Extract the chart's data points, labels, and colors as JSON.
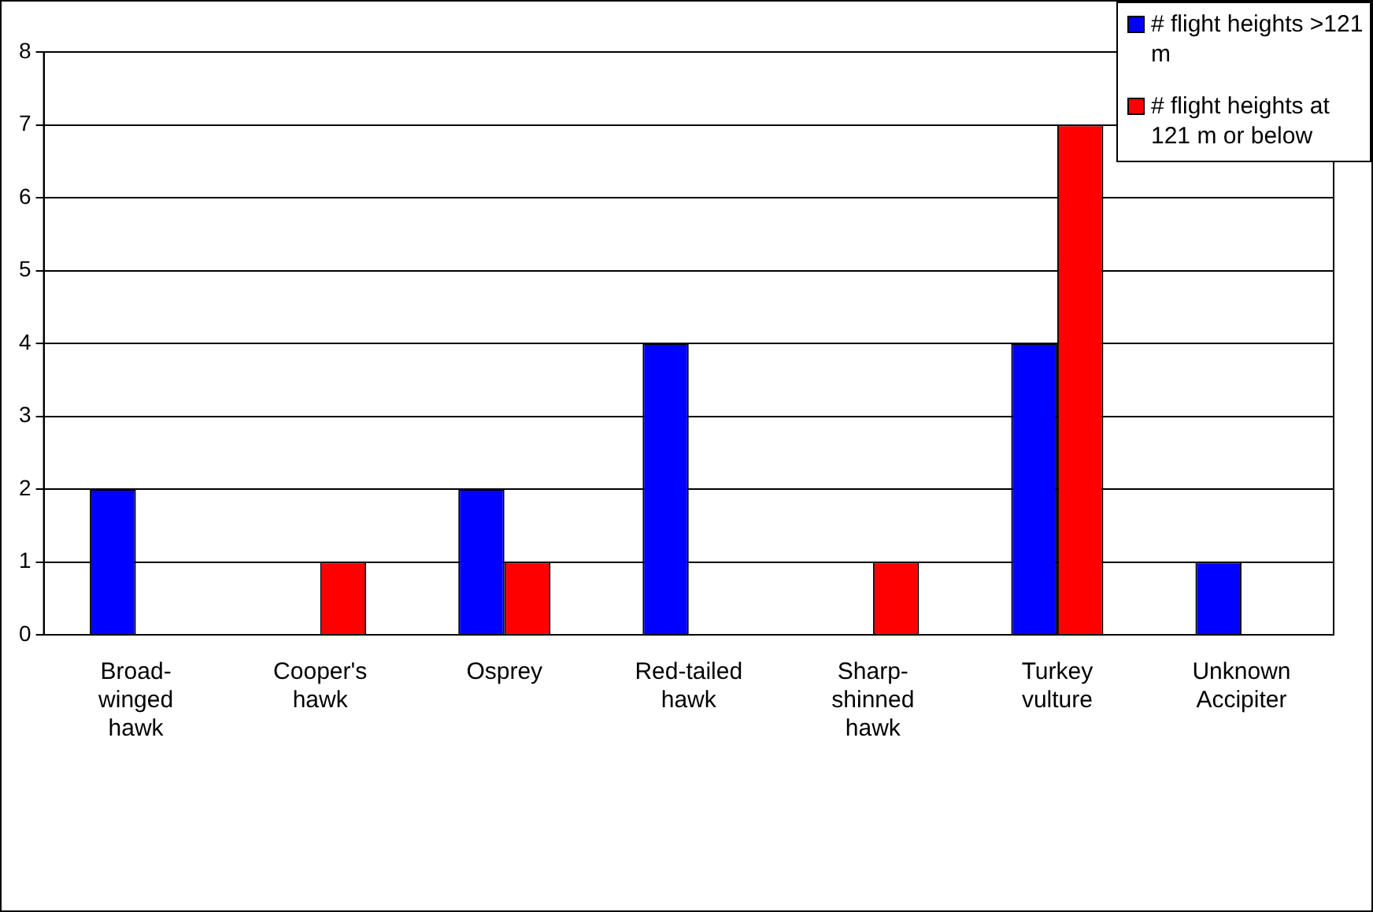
{
  "chart_data": {
    "type": "bar",
    "categories": [
      "Broad-winged hawk",
      "Cooper's hawk",
      "Osprey",
      "Red-tailed hawk",
      "Sharp-shinned hawk",
      "Turkey vulture",
      "Unknown Accipiter"
    ],
    "series": [
      {
        "name": "# flight heights >121 m",
        "color": "#0000ff",
        "values": [
          2,
          0,
          2,
          4,
          0,
          4,
          1
        ]
      },
      {
        "name": "# flight heights at 121 m or below",
        "color": "#ff0000",
        "values": [
          0,
          1,
          1,
          0,
          1,
          7,
          0
        ]
      }
    ],
    "ylim": [
      0,
      8
    ],
    "yticks": [
      0,
      1,
      2,
      3,
      4,
      5,
      6,
      7,
      8
    ],
    "grid": "y",
    "legend": "top right"
  }
}
